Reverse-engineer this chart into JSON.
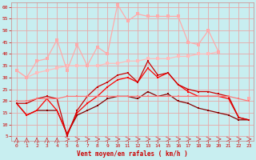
{
  "x": [
    0,
    1,
    2,
    3,
    4,
    5,
    6,
    7,
    8,
    9,
    10,
    11,
    12,
    13,
    14,
    15,
    16,
    17,
    18,
    19,
    20,
    21,
    22,
    23
  ],
  "line1": [
    33,
    30,
    37,
    38,
    46,
    33,
    44,
    35,
    43,
    40,
    61,
    54,
    57,
    56,
    56,
    56,
    56,
    45,
    44,
    50,
    41,
    null,
    null,
    21
  ],
  "line2": [
    33,
    30,
    32,
    33,
    34,
    35,
    35,
    35,
    35,
    36,
    36,
    37,
    37,
    38,
    38,
    38,
    39,
    39,
    40,
    40,
    41,
    null,
    null,
    21
  ],
  "line3": [
    20,
    20,
    21,
    21,
    21,
    22,
    22,
    22,
    22,
    22,
    22,
    22,
    22,
    22,
    22,
    22,
    22,
    22,
    22,
    22,
    22,
    22,
    21,
    20
  ],
  "line4": [
    19,
    19,
    21,
    22,
    21,
    5,
    16,
    22,
    26,
    28,
    31,
    32,
    28,
    37,
    31,
    32,
    27,
    25,
    24,
    24,
    23,
    22,
    13,
    12
  ],
  "line5": [
    19,
    14,
    16,
    21,
    16,
    6,
    15,
    19,
    22,
    26,
    29,
    30,
    28,
    34,
    30,
    32,
    27,
    24,
    22,
    22,
    22,
    21,
    13,
    12
  ],
  "line6": [
    19,
    14,
    16,
    16,
    16,
    6,
    14,
    16,
    18,
    21,
    22,
    22,
    21,
    24,
    22,
    23,
    20,
    19,
    17,
    16,
    15,
    14,
    12,
    12
  ],
  "bg_color": "#c8eef0",
  "grid_color": "#e8a8a8",
  "line1_color": "#ffaaaa",
  "line2_color": "#ffbbbb",
  "line3_color": "#ff7777",
  "line4_color": "#cc0000",
  "line5_color": "#ff0000",
  "line6_color": "#880000",
  "xlabel": "Vent moyen/en rafales ( km/h )",
  "xlim": [
    -0.5,
    23.5
  ],
  "ylim": [
    3,
    62
  ],
  "yticks": [
    5,
    10,
    15,
    20,
    25,
    30,
    35,
    40,
    45,
    50,
    55,
    60
  ],
  "xticks": [
    0,
    1,
    2,
    3,
    4,
    5,
    6,
    7,
    8,
    9,
    10,
    11,
    12,
    13,
    14,
    15,
    16,
    17,
    18,
    19,
    20,
    21,
    22,
    23
  ]
}
